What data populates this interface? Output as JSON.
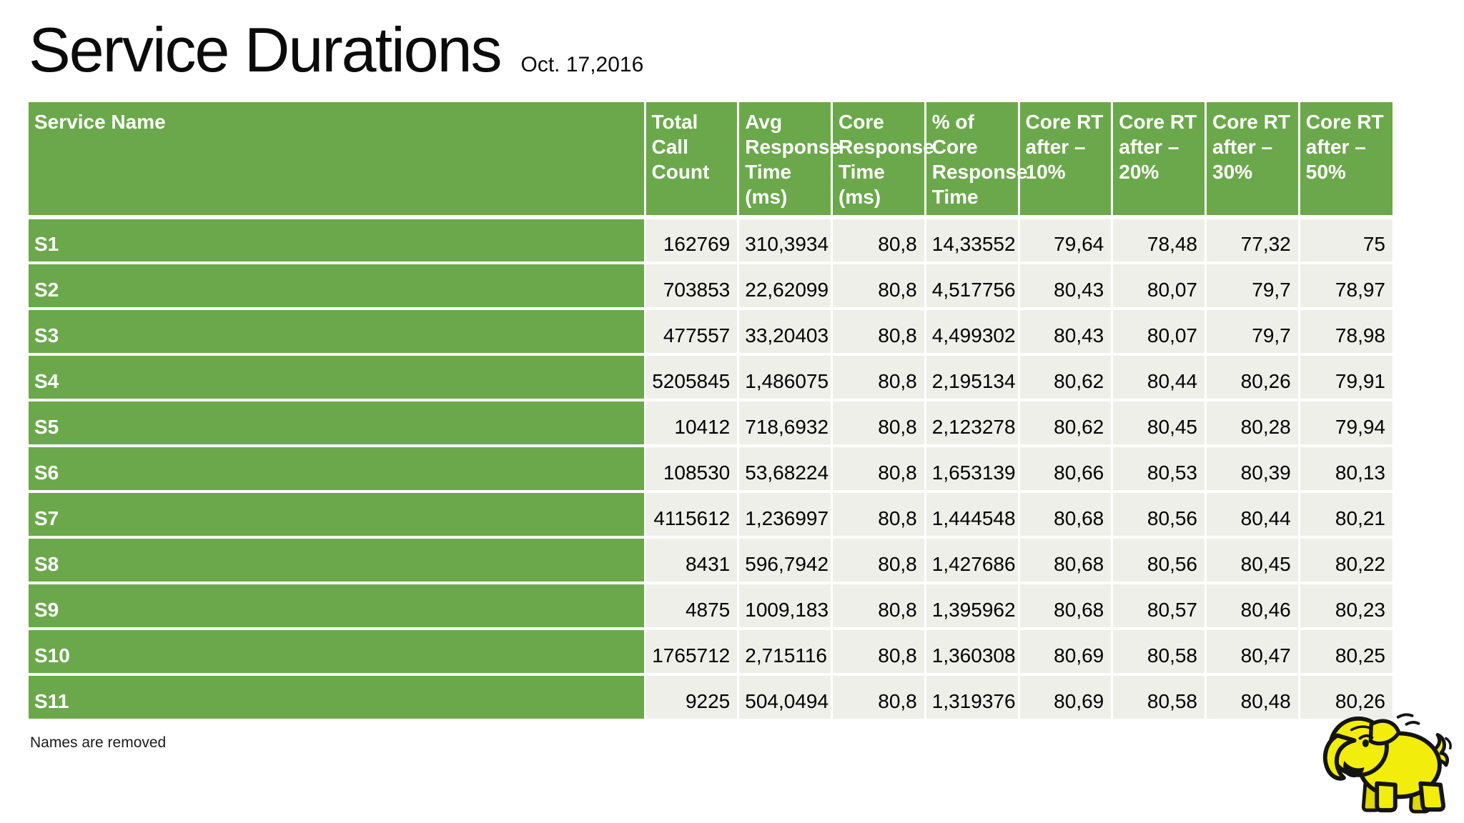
{
  "slide": {
    "title": "Service Durations",
    "date": "Oct. 17,2016",
    "footnote": "Names are removed"
  },
  "colors": {
    "header_green": "#6BA84B",
    "cell_background": "#EFEFEA",
    "separator_white": "#FFFFFF",
    "logo_yellow": "#F2ED0A"
  },
  "logo": {
    "name": "hadoop-elephant-logo"
  },
  "table": {
    "columns": [
      "Service Name",
      "Total Call Count",
      "Avg Response Time (ms)",
      "Core Response Time (ms)",
      "% of Core Response Time",
      "Core RT after – 10%",
      "Core RT after – 20%",
      "Core RT after – 30%",
      "Core RT after – 50%"
    ],
    "rows": [
      {
        "service": "S1",
        "values": [
          "162769",
          "310,3934",
          "80,8",
          "14,33552",
          "79,64",
          "78,48",
          "77,32",
          "75"
        ]
      },
      {
        "service": "S2",
        "values": [
          "703853",
          "22,62099",
          "80,8",
          "4,517756",
          "80,43",
          "80,07",
          "79,7",
          "78,97"
        ]
      },
      {
        "service": "S3",
        "values": [
          "477557",
          "33,20403",
          "80,8",
          "4,499302",
          "80,43",
          "80,07",
          "79,7",
          "78,98"
        ]
      },
      {
        "service": "S4",
        "values": [
          "5205845",
          "1,486075",
          "80,8",
          "2,195134",
          "80,62",
          "80,44",
          "80,26",
          "79,91"
        ]
      },
      {
        "service": "S5",
        "values": [
          "10412",
          "718,6932",
          "80,8",
          "2,123278",
          "80,62",
          "80,45",
          "80,28",
          "79,94"
        ]
      },
      {
        "service": "S6",
        "values": [
          "108530",
          "53,68224",
          "80,8",
          "1,653139",
          "80,66",
          "80,53",
          "80,39",
          "80,13"
        ]
      },
      {
        "service": "S7",
        "values": [
          "4115612",
          "1,236997",
          "80,8",
          "1,444548",
          "80,68",
          "80,56",
          "80,44",
          "80,21"
        ]
      },
      {
        "service": "S8",
        "values": [
          "8431",
          "596,7942",
          "80,8",
          "1,427686",
          "80,68",
          "80,56",
          "80,45",
          "80,22"
        ]
      },
      {
        "service": "S9",
        "values": [
          "4875",
          "1009,183",
          "80,8",
          "1,395962",
          "80,68",
          "80,57",
          "80,46",
          "80,23"
        ]
      },
      {
        "service": "S10",
        "values": [
          "1765712",
          "2,715116",
          "80,8",
          "1,360308",
          "80,69",
          "80,58",
          "80,47",
          "80,25"
        ]
      },
      {
        "service": "S11",
        "values": [
          "9225",
          "504,0494",
          "80,8",
          "1,319376",
          "80,69",
          "80,58",
          "80,48",
          "80,26"
        ]
      }
    ]
  }
}
